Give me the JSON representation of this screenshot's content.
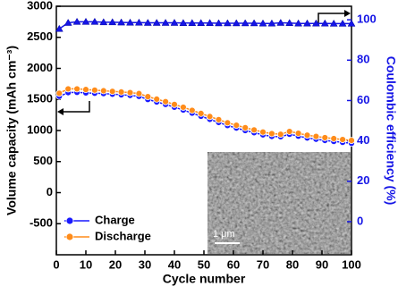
{
  "chart_data": {
    "type": "line",
    "x_label": "Cycle number",
    "y_label": "Volume capacity (mAh cm⁻³)",
    "y2_label": "Coulombic efficiency (%)",
    "inset_scale_label": "1 μm",
    "x": [
      1,
      4,
      7,
      10,
      13,
      16,
      19,
      22,
      25,
      28,
      31,
      34,
      37,
      40,
      43,
      46,
      49,
      52,
      55,
      58,
      61,
      64,
      67,
      70,
      73,
      76,
      79,
      82,
      85,
      88,
      91,
      94,
      97,
      100
    ],
    "series": [
      {
        "name": "Charge",
        "color": "#1a1aff",
        "marker": "circle",
        "values": [
          1550,
          1610,
          1615,
          1605,
          1600,
          1595,
          1585,
          1575,
          1565,
          1550,
          1500,
          1460,
          1420,
          1375,
          1330,
          1280,
          1230,
          1180,
          1130,
          1080,
          1040,
          1000,
          965,
          930,
          905,
          900,
          940,
          910,
          880,
          860,
          840,
          825,
          810,
          795
        ]
      },
      {
        "name": "Discharge",
        "color": "#ff8c1a",
        "marker": "circle",
        "values": [
          1600,
          1670,
          1670,
          1660,
          1650,
          1640,
          1630,
          1620,
          1610,
          1595,
          1545,
          1505,
          1465,
          1420,
          1375,
          1325,
          1275,
          1225,
          1175,
          1125,
          1085,
          1045,
          1010,
          975,
          950,
          940,
          985,
          955,
          925,
          905,
          885,
          870,
          855,
          840
        ]
      },
      {
        "color": "#1515e6",
        "marker": "triangle",
        "axis": "y2",
        "values": [
          95.5,
          98.5,
          99,
          99,
          99,
          98.8,
          98.8,
          98.7,
          98.6,
          98.6,
          98.5,
          98.5,
          98.5,
          98.5,
          98.4,
          98.4,
          98.4,
          98.4,
          98.3,
          98.3,
          98.3,
          98.3,
          98.3,
          98.2,
          98.2,
          98.5,
          98.4,
          98.2,
          98.2,
          98.2,
          98.2,
          98.1,
          98.1,
          98.1
        ]
      }
    ],
    "xlim": [
      0,
      100
    ],
    "xticks": [
      0,
      10,
      20,
      30,
      40,
      50,
      60,
      70,
      80,
      90,
      100
    ],
    "ylim": [
      -1000,
      3000
    ],
    "yticks": [
      -500,
      0,
      500,
      1000,
      1500,
      2000,
      2500,
      3000
    ],
    "y2lim": [
      -16.4,
      106.7
    ],
    "y2ticks": [
      0,
      20,
      40,
      60,
      80,
      100
    ],
    "legend": "lower-left",
    "y2_color": "#1515e6"
  }
}
